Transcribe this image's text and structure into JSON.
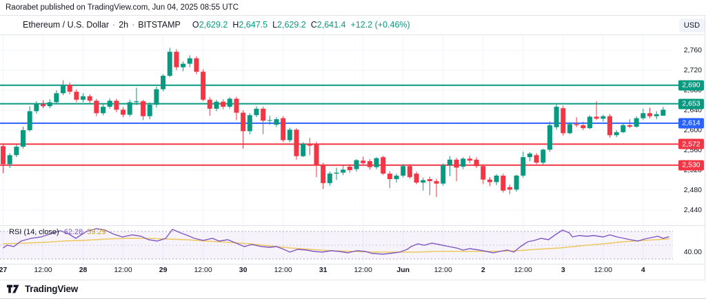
{
  "attribution": "Raorabet published on TradingView.com, Jun 04, 2025 08:55 UTC",
  "header": {
    "symbol": "Ethereum / U.S. Dollar",
    "separator": "·",
    "interval": "2h",
    "exchange": "BITSTAMP",
    "ohlc": [
      {
        "label": "O",
        "value": "2,629.2"
      },
      {
        "label": "H",
        "value": "2,647.5"
      },
      {
        "label": "L",
        "value": "2,629.2"
      },
      {
        "label": "C",
        "value": "2,641.4"
      }
    ],
    "change": "+12.2 (+0.46%)",
    "currency_button": "USD"
  },
  "price_axis": {
    "ticks": [
      {
        "text": "2,760",
        "price": 2760
      },
      {
        "text": "2,720",
        "price": 2720
      },
      {
        "text": "2,680",
        "price": 2680
      },
      {
        "text": "2,640",
        "price": 2640
      },
      {
        "text": "2,600",
        "price": 2600
      },
      {
        "text": "2,560",
        "price": 2560
      },
      {
        "text": "2,520",
        "price": 2520
      },
      {
        "text": "2,480",
        "price": 2480
      },
      {
        "text": "2,440",
        "price": 2440
      }
    ],
    "badges": [
      {
        "text": "2,690",
        "price": 2690,
        "color": "#089981"
      },
      {
        "text": "2,653",
        "price": 2653,
        "color": "#089981"
      },
      {
        "text": "2,614",
        "price": 2614,
        "color": "#2962ff"
      },
      {
        "text": "2,572",
        "price": 2572,
        "color": "#f23645"
      },
      {
        "text": "2,530",
        "price": 2530,
        "color": "#f23645"
      }
    ]
  },
  "time_axis": [
    {
      "text": "27",
      "i": 0,
      "major": true
    },
    {
      "text": "12:00",
      "i": 6,
      "major": false
    },
    {
      "text": "28",
      "i": 12,
      "major": true
    },
    {
      "text": "12:00",
      "i": 18,
      "major": false
    },
    {
      "text": "29",
      "i": 24,
      "major": true
    },
    {
      "text": "12:00",
      "i": 30,
      "major": false
    },
    {
      "text": "30",
      "i": 36,
      "major": true
    },
    {
      "text": "12:00",
      "i": 42,
      "major": false
    },
    {
      "text": "31",
      "i": 48,
      "major": true
    },
    {
      "text": "12:00",
      "i": 54,
      "major": false
    },
    {
      "text": "Jun",
      "i": 60,
      "major": true
    },
    {
      "text": "12:00",
      "i": 66,
      "major": false
    },
    {
      "text": "2",
      "i": 72,
      "major": true
    },
    {
      "text": "12:00",
      "i": 78,
      "major": false
    },
    {
      "text": "3",
      "i": 84,
      "major": true
    },
    {
      "text": "12:00",
      "i": 90,
      "major": false
    },
    {
      "text": "4",
      "i": 96,
      "major": true
    }
  ],
  "rsi_pane": {
    "title": "RSI",
    "params": "(14, close)",
    "value": "62.28",
    "ma_value": "59.29",
    "axis_label": "40.00"
  },
  "footer": {
    "brand": "TradingView"
  },
  "colors": {
    "up": "#089981",
    "down": "#f23645",
    "blue_level": "#2962ff",
    "rsi": "#7e57c2",
    "rsi_ma": "#eec75e",
    "grid": "#f0f3fa",
    "border": "#e0e3eb",
    "text": "#131722"
  },
  "chart_data": {
    "type": "candlestick",
    "symbol": "Ethereum / U.S. Dollar (BITSTAMP)",
    "interval": "2h",
    "visible_price_range": [
      2440,
      2790
    ],
    "grid_price_step": 40,
    "levels": [
      {
        "price": 2690,
        "color": "#089981"
      },
      {
        "price": 2653,
        "color": "#089981"
      },
      {
        "price": 2614,
        "color": "#2962ff"
      },
      {
        "price": 2572,
        "color": "#f23645"
      },
      {
        "price": 2530,
        "color": "#f23645"
      }
    ],
    "candles_ohlc": [
      [
        2568,
        2572,
        2514,
        2532
      ],
      [
        2532,
        2554,
        2524,
        2550
      ],
      [
        2550,
        2572,
        2546,
        2567
      ],
      [
        2567,
        2607,
        2563,
        2600
      ],
      [
        2600,
        2648,
        2597,
        2638
      ],
      [
        2638,
        2658,
        2633,
        2652
      ],
      [
        2652,
        2660,
        2644,
        2648
      ],
      [
        2648,
        2662,
        2644,
        2656
      ],
      [
        2656,
        2680,
        2652,
        2674
      ],
      [
        2674,
        2700,
        2670,
        2691
      ],
      [
        2691,
        2696,
        2672,
        2677
      ],
      [
        2677,
        2682,
        2656,
        2661
      ],
      [
        2661,
        2674,
        2656,
        2668
      ],
      [
        2668,
        2672,
        2654,
        2659
      ],
      [
        2659,
        2663,
        2628,
        2634
      ],
      [
        2634,
        2652,
        2630,
        2647
      ],
      [
        2647,
        2664,
        2643,
        2659
      ],
      [
        2659,
        2663,
        2636,
        2641
      ],
      [
        2641,
        2646,
        2626,
        2631
      ],
      [
        2631,
        2661,
        2627,
        2656
      ],
      [
        2656,
        2685,
        2650,
        2658
      ],
      [
        2658,
        2661,
        2620,
        2628
      ],
      [
        2628,
        2656,
        2622,
        2651
      ],
      [
        2651,
        2687,
        2645,
        2682
      ],
      [
        2682,
        2712,
        2678,
        2709
      ],
      [
        2709,
        2765,
        2706,
        2757
      ],
      [
        2757,
        2762,
        2720,
        2726
      ],
      [
        2726,
        2738,
        2718,
        2733
      ],
      [
        2733,
        2750,
        2726,
        2744
      ],
      [
        2744,
        2748,
        2712,
        2717
      ],
      [
        2717,
        2722,
        2658,
        2661
      ],
      [
        2661,
        2666,
        2629,
        2643
      ],
      [
        2643,
        2661,
        2638,
        2657
      ],
      [
        2657,
        2662,
        2642,
        2647
      ],
      [
        2647,
        2666,
        2643,
        2663
      ],
      [
        2663,
        2667,
        2620,
        2635
      ],
      [
        2635,
        2640,
        2563,
        2598
      ],
      [
        2598,
        2634,
        2592,
        2630
      ],
      [
        2630,
        2648,
        2626,
        2643
      ],
      [
        2643,
        2647,
        2592,
        2619
      ],
      [
        2619,
        2629,
        2611,
        2620
      ],
      [
        2611,
        2626,
        2606,
        2622
      ],
      [
        2624,
        2628,
        2576,
        2580
      ],
      [
        2580,
        2605,
        2576,
        2601
      ],
      [
        2601,
        2604,
        2541,
        2548
      ],
      [
        2548,
        2576,
        2546,
        2573
      ],
      [
        2573,
        2585,
        2550,
        2569
      ],
      [
        2572,
        2577,
        2506,
        2531
      ],
      [
        2531,
        2535,
        2482,
        2494
      ],
      [
        2494,
        2517,
        2489,
        2513
      ],
      [
        2513,
        2525,
        2500,
        2515
      ],
      [
        2515,
        2531,
        2510,
        2521
      ],
      [
        2527,
        2532,
        2515,
        2520
      ],
      [
        2522,
        2542,
        2517,
        2540
      ],
      [
        2539,
        2547,
        2530,
        2534
      ],
      [
        2538,
        2542,
        2521,
        2526
      ],
      [
        2526,
        2546,
        2522,
        2544
      ],
      [
        2546,
        2549,
        2510,
        2513
      ],
      [
        2513,
        2518,
        2484,
        2502
      ],
      [
        2502,
        2513,
        2495,
        2509
      ],
      [
        2509,
        2532,
        2505,
        2528
      ],
      [
        2528,
        2532,
        2503,
        2506
      ],
      [
        2513,
        2517,
        2492,
        2495
      ],
      [
        2495,
        2505,
        2479,
        2500
      ],
      [
        2502,
        2507,
        2470,
        2498
      ],
      [
        2498,
        2503,
        2466,
        2493
      ],
      [
        2493,
        2533,
        2489,
        2530
      ],
      [
        2530,
        2548,
        2508,
        2541
      ],
      [
        2541,
        2545,
        2498,
        2525
      ],
      [
        2527,
        2546,
        2522,
        2543
      ],
      [
        2543,
        2549,
        2534,
        2539
      ],
      [
        2541,
        2546,
        2524,
        2528
      ],
      [
        2528,
        2532,
        2492,
        2501
      ],
      [
        2501,
        2506,
        2488,
        2496
      ],
      [
        2496,
        2512,
        2490,
        2509
      ],
      [
        2509,
        2513,
        2475,
        2479
      ],
      [
        2486,
        2491,
        2472,
        2481
      ],
      [
        2481,
        2511,
        2477,
        2509
      ],
      [
        2509,
        2557,
        2505,
        2546
      ],
      [
        2546,
        2556,
        2538,
        2553
      ],
      [
        2550,
        2554,
        2532,
        2535
      ],
      [
        2535,
        2563,
        2530,
        2561
      ],
      [
        2561,
        2617,
        2557,
        2610
      ],
      [
        2606,
        2653,
        2601,
        2647
      ],
      [
        2644,
        2649,
        2589,
        2594
      ],
      [
        2594,
        2616,
        2592,
        2612
      ],
      [
        2612,
        2626,
        2606,
        2610
      ],
      [
        2610,
        2617,
        2600,
        2604
      ],
      [
        2604,
        2630,
        2602,
        2627
      ],
      [
        2627,
        2658,
        2620,
        2623
      ],
      [
        2623,
        2631,
        2617,
        2628
      ],
      [
        2628,
        2632,
        2585,
        2590
      ],
      [
        2590,
        2600,
        2586,
        2596
      ],
      [
        2596,
        2614,
        2594,
        2610
      ],
      [
        2610,
        2622,
        2604,
        2607
      ],
      [
        2607,
        2628,
        2605,
        2624
      ],
      [
        2624,
        2643,
        2620,
        2634
      ],
      [
        2634,
        2645,
        2624,
        2628
      ],
      [
        2628,
        2638,
        2622,
        2632
      ],
      [
        2629,
        2647,
        2629,
        2641
      ]
    ],
    "rsi": {
      "period": 14,
      "source": "close",
      "bands": [
        70,
        50,
        30
      ],
      "current": 62.28,
      "ma_current": 59.29,
      "points": [
        [
          0,
          46
        ],
        [
          0.6,
          50
        ],
        [
          1.6,
          48
        ],
        [
          2.7,
          56
        ],
        [
          4.2,
          60
        ],
        [
          5.7,
          62
        ],
        [
          7.3,
          67
        ],
        [
          8.6,
          71
        ],
        [
          9.9,
          66
        ],
        [
          10.9,
          60
        ],
        [
          12.5,
          70
        ],
        [
          14,
          74
        ],
        [
          15.3,
          72
        ],
        [
          16.6,
          66
        ],
        [
          17.9,
          62
        ],
        [
          19.4,
          65
        ],
        [
          20.7,
          63
        ],
        [
          21.8,
          58
        ],
        [
          23.1,
          56
        ],
        [
          24.4,
          60
        ],
        [
          25.4,
          73
        ],
        [
          26.6,
          68
        ],
        [
          27.7,
          64
        ],
        [
          28.7,
          60
        ],
        [
          30,
          57
        ],
        [
          31.4,
          60
        ],
        [
          32.4,
          56
        ],
        [
          33.7,
          58
        ],
        [
          35.2,
          52
        ],
        [
          36.2,
          48
        ],
        [
          37.3,
          51
        ],
        [
          38.8,
          48
        ],
        [
          40,
          47
        ],
        [
          41,
          48
        ],
        [
          42.1,
          44
        ],
        [
          43,
          40
        ],
        [
          44.2,
          44
        ],
        [
          45.5,
          43
        ],
        [
          46.6,
          41
        ],
        [
          47.9,
          40
        ],
        [
          49.2,
          42
        ],
        [
          50.4,
          41
        ],
        [
          51.7,
          39
        ],
        [
          53.1,
          42
        ],
        [
          54.3,
          41
        ],
        [
          55.4,
          38
        ],
        [
          57,
          37
        ],
        [
          58,
          38
        ],
        [
          59.5,
          40
        ],
        [
          60.6,
          44
        ],
        [
          61.2,
          48
        ],
        [
          62.2,
          52
        ],
        [
          63.2,
          50
        ],
        [
          64.3,
          53
        ],
        [
          65.4,
          51
        ],
        [
          66.9,
          48
        ],
        [
          68,
          46
        ],
        [
          69,
          43
        ],
        [
          70,
          45
        ],
        [
          71.4,
          43
        ],
        [
          72.5,
          41
        ],
        [
          73.5,
          39
        ],
        [
          74.5,
          41
        ],
        [
          75.6,
          43
        ],
        [
          76.6,
          40
        ],
        [
          77.6,
          48
        ],
        [
          78.7,
          55
        ],
        [
          79.7,
          57
        ],
        [
          80.7,
          60
        ],
        [
          81.8,
          58
        ],
        [
          82.8,
          65
        ],
        [
          83.9,
          72
        ],
        [
          84.9,
          68
        ],
        [
          85.4,
          62
        ],
        [
          86.4,
          64
        ],
        [
          87.6,
          63
        ],
        [
          88.6,
          64
        ],
        [
          90,
          62
        ],
        [
          91,
          65
        ],
        [
          92.1,
          62
        ],
        [
          93.1,
          60
        ],
        [
          94.1,
          58
        ],
        [
          95.2,
          56
        ],
        [
          96.2,
          59
        ],
        [
          97.2,
          61
        ],
        [
          98.2,
          63
        ],
        [
          99,
          60
        ],
        [
          99.9,
          62.3
        ]
      ],
      "ma_points": [
        [
          0,
          52
        ],
        [
          3,
          53
        ],
        [
          6,
          54
        ],
        [
          9,
          56
        ],
        [
          12,
          57
        ],
        [
          15.5,
          59
        ],
        [
          18.5,
          60
        ],
        [
          21.5,
          60
        ],
        [
          24.5,
          59
        ],
        [
          27.5,
          58
        ],
        [
          30.5,
          56
        ],
        [
          34,
          54
        ],
        [
          37,
          52
        ],
        [
          40,
          49
        ],
        [
          43,
          46
        ],
        [
          46,
          44
        ],
        [
          49,
          42
        ],
        [
          52.5,
          41
        ],
        [
          55.5,
          40
        ],
        [
          58.5,
          40
        ],
        [
          62,
          40
        ],
        [
          65,
          41
        ],
        [
          68,
          41
        ],
        [
          71,
          41
        ],
        [
          74,
          41
        ],
        [
          77,
          42
        ],
        [
          80,
          44
        ],
        [
          83.5,
          46
        ],
        [
          86.5,
          49
        ],
        [
          90,
          52
        ],
        [
          93,
          55
        ],
        [
          96,
          57
        ],
        [
          98,
          58
        ],
        [
          99.9,
          59.3
        ]
      ]
    }
  }
}
